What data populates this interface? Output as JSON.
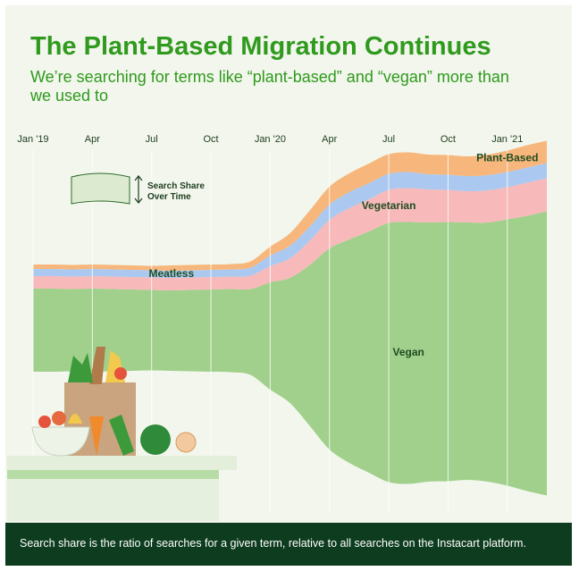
{
  "chart_data": {
    "type": "stream",
    "title": "The Plant-Based Migration Continues",
    "subtitle": "We’re searching for terms like “plant-based” and “vegan” more than we used to",
    "categories": [
      "Jan '19",
      null,
      null,
      "Apr",
      null,
      null,
      "Jul",
      null,
      null,
      "Oct",
      null,
      null,
      "Jan '20",
      null,
      null,
      "Apr",
      null,
      null,
      "Jul",
      null,
      null,
      "Oct",
      null,
      null,
      "Jan '21",
      null,
      null
    ],
    "series": [
      {
        "name": "Vegan",
        "color": "#a0d08b",
        "values": [
          93,
          93,
          92,
          93,
          92,
          91,
          90,
          90,
          91,
          92,
          93,
          96,
          120,
          140,
          180,
          225,
          250,
          270,
          290,
          293,
          290,
          290,
          288,
          290,
          298,
          308,
          318
        ]
      },
      {
        "name": "Vegetarian",
        "color": "#f7b9b9",
        "values": [
          14,
          14,
          14,
          14,
          14,
          14,
          14,
          14,
          14,
          14,
          14,
          15,
          18,
          22,
          27,
          32,
          35,
          36,
          37,
          38,
          37,
          36,
          35,
          36,
          36,
          37,
          37
        ]
      },
      {
        "name": "Meatless",
        "color": "#abc9f0",
        "values": [
          8,
          8,
          8,
          8,
          8,
          8,
          8,
          8,
          8,
          8,
          8,
          9,
          12,
          14,
          16,
          17,
          18,
          18,
          18,
          18,
          17,
          17,
          17,
          17,
          17,
          17,
          17
        ]
      },
      {
        "name": "Plant-Based",
        "color": "#f7b77c",
        "values": [
          5,
          5,
          5,
          5,
          5,
          5,
          5,
          6,
          6,
          6,
          6,
          7,
          10,
          14,
          18,
          20,
          21,
          22,
          22,
          22,
          22,
          22,
          22,
          23,
          24,
          25,
          25
        ]
      }
    ],
    "legend_note": [
      "Search Share",
      "Over Time"
    ],
    "footnote": "Search share is the ratio of searches for a given term, relative to all searches on the Instacart platform."
  }
}
